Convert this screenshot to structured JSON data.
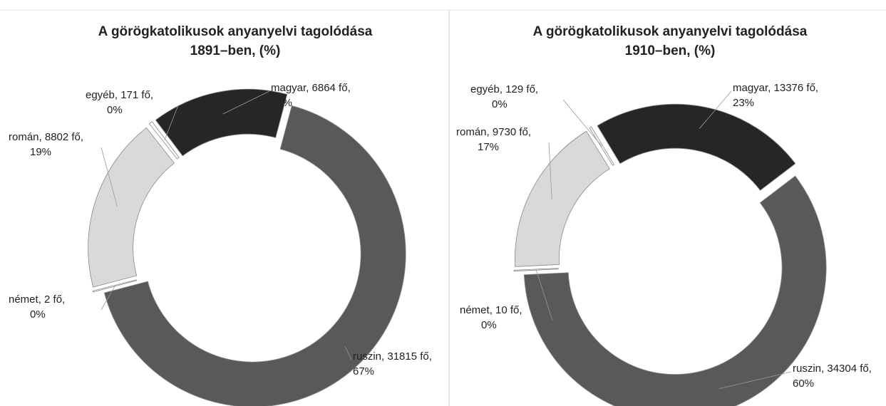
{
  "chart_data": [
    {
      "type": "donut",
      "title": [
        "A görögkatolikusok anyanyelvi tagolódása",
        "1891–ben, (%)"
      ],
      "values": [
        6864,
        31815,
        2,
        8802,
        171
      ],
      "value_labels": [
        [
          "magyar, 6864 fő,",
          "14%"
        ],
        [
          "ruszin, 31815 fő,",
          "67%"
        ],
        [
          "német, 2 fő,",
          "0%"
        ],
        [
          "román, 8802 fő,",
          "19%"
        ],
        [
          "egyéb, 171 fő,",
          "0%"
        ]
      ],
      "colors": [
        "#262626",
        "#595959",
        "#ffffff",
        "#d9d9d9",
        "#ffffff"
      ]
    },
    {
      "type": "donut",
      "title": [
        "A görögkatolikusok anyanyelvi tagolódása",
        "1910–ben, (%)"
      ],
      "values": [
        13376,
        34304,
        10,
        9730,
        129
      ],
      "value_labels": [
        [
          "magyar, 13376 fő,",
          "23%"
        ],
        [
          "ruszin, 34304 fő,",
          "60%"
        ],
        [
          "német, 10 fő,",
          "0%"
        ],
        [
          "román, 9730 fő,",
          "17%"
        ],
        [
          "egyéb, 129 fő,",
          "0%"
        ]
      ],
      "colors": [
        "#262626",
        "#595959",
        "#ffffff",
        "#d9d9d9",
        "#ffffff"
      ]
    }
  ]
}
